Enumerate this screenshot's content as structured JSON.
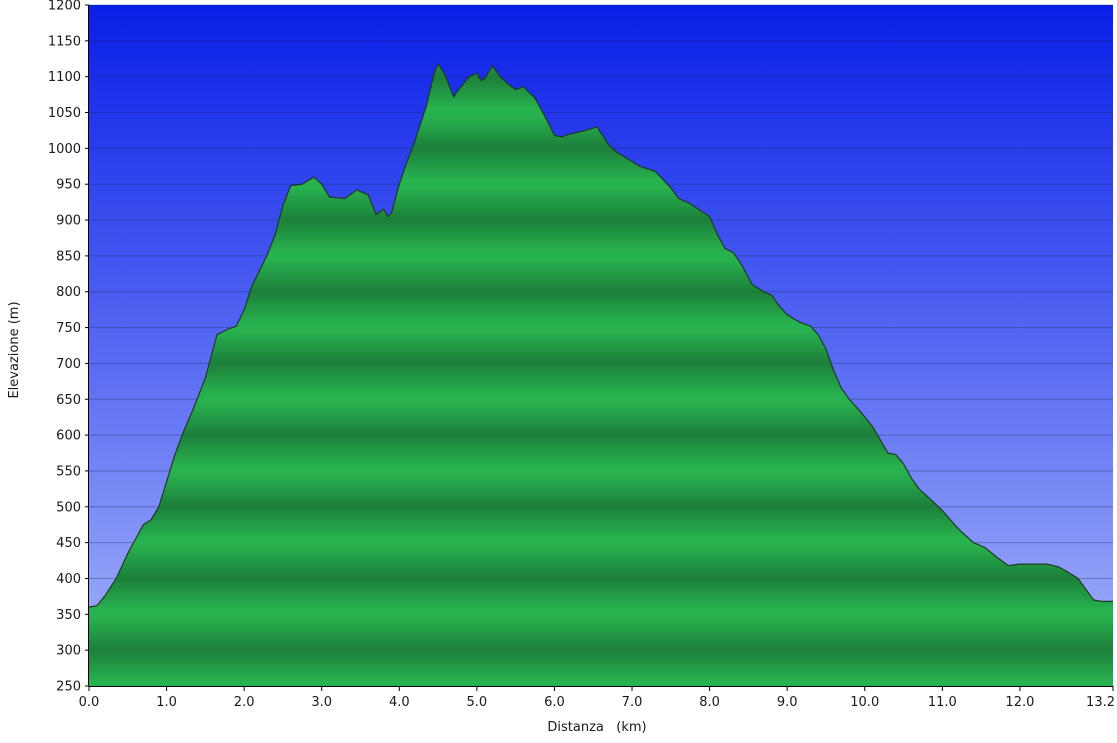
{
  "chart_data": {
    "type": "area",
    "title": "",
    "xlabel": "Distanza   (km)",
    "ylabel": "Elevazione (m)",
    "xlim": [
      0,
      13.2
    ],
    "ylim": [
      250,
      1200
    ],
    "x_ticks": [
      "0.0",
      "1.0",
      "2.0",
      "3.0",
      "4.0",
      "5.0",
      "6.0",
      "7.0",
      "8.0",
      "9.0",
      "10.0",
      "11.0",
      "12.0",
      "13.2"
    ],
    "y_ticks": [
      "250",
      "300",
      "350",
      "400",
      "450",
      "500",
      "550",
      "600",
      "650",
      "700",
      "750",
      "800",
      "850",
      "900",
      "950",
      "1000",
      "1050",
      "1100",
      "1150",
      "1200"
    ],
    "grid": true,
    "series": [
      {
        "x": [
          0.0,
          0.1,
          0.2,
          0.35,
          0.5,
          0.7,
          0.8,
          0.9,
          1.0,
          1.1,
          1.2,
          1.35,
          1.5,
          1.6,
          1.65,
          1.8,
          1.9,
          2.0,
          2.1,
          2.2,
          2.3,
          2.4,
          2.5,
          2.6,
          2.75,
          2.9,
          3.0,
          3.1,
          3.3,
          3.45,
          3.6,
          3.7,
          3.8,
          3.85,
          3.9,
          4.0,
          4.1,
          4.2,
          4.35,
          4.45,
          4.5,
          4.55,
          4.6,
          4.7,
          4.75,
          4.9,
          5.0,
          5.05,
          5.1,
          5.2,
          5.3,
          5.4,
          5.5,
          5.6,
          5.75,
          5.9,
          6.0,
          6.1,
          6.2,
          6.4,
          6.55,
          6.7,
          6.8,
          6.95,
          7.1,
          7.3,
          7.5,
          7.6,
          7.75,
          7.9,
          8.0,
          8.1,
          8.2,
          8.3,
          8.4,
          8.55,
          8.7,
          8.8,
          8.9,
          9.0,
          9.15,
          9.3,
          9.4,
          9.5,
          9.6,
          9.7,
          9.8,
          9.95,
          10.1,
          10.3,
          10.4,
          10.5,
          10.6,
          10.7,
          10.85,
          11.0,
          11.2,
          11.4,
          11.55,
          11.7,
          11.85,
          12.0,
          12.15,
          12.35,
          12.5,
          12.6,
          12.75,
          12.85,
          12.95,
          13.05,
          13.2
        ],
        "y": [
          360,
          362,
          375,
          400,
          435,
          475,
          482,
          500,
          535,
          570,
          600,
          638,
          680,
          720,
          740,
          748,
          752,
          775,
          808,
          830,
          852,
          880,
          920,
          948,
          950,
          960,
          950,
          932,
          930,
          942,
          935,
          908,
          915,
          905,
          910,
          950,
          982,
          1010,
          1060,
          1105,
          1118,
          1110,
          1100,
          1072,
          1080,
          1100,
          1105,
          1095,
          1097,
          1115,
          1100,
          1090,
          1082,
          1086,
          1070,
          1040,
          1018,
          1016,
          1020,
          1025,
          1030,
          1005,
          995,
          985,
          975,
          968,
          945,
          930,
          923,
          912,
          905,
          880,
          860,
          855,
          840,
          810,
          800,
          795,
          780,
          768,
          758,
          752,
          740,
          720,
          690,
          665,
          650,
          632,
          612,
          575,
          573,
          560,
          540,
          525,
          510,
          495,
          470,
          450,
          443,
          430,
          418,
          420,
          420,
          420,
          416,
          410,
          400,
          385,
          370,
          368,
          368
        ]
      }
    ]
  }
}
